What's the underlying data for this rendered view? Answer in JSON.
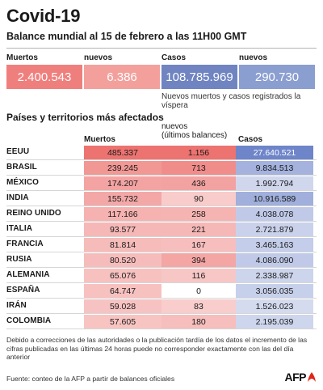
{
  "header": {
    "title": "Covid-19",
    "subtitle": "Balance mundial al 15 de febrero a las 11H00 GMT"
  },
  "summary": {
    "muertos_label": "Muertos",
    "nuevos_label": "nuevos",
    "casos_label": "Casos",
    "nuevos_casos_label": "nuevos",
    "muertos_value": "2.400.543",
    "nuevos_muertos_value": "6.386",
    "casos_value": "108.785.969",
    "nuevos_casos_value": "290.730",
    "note": "Nuevos muertos y casos registrados la víspera"
  },
  "table": {
    "section_title": "Países y territorios más afectados",
    "col_muertos": "Muertos",
    "col_nuevos": "nuevos",
    "col_nuevos_sub": "(últimos balances)",
    "col_casos": "Casos",
    "rows": [
      {
        "country": "EEUU",
        "muertos": "485.337",
        "nuevos": "1.156",
        "casos": "27.640.521"
      },
      {
        "country": "BRASIL",
        "muertos": "239.245",
        "nuevos": "713",
        "casos": "9.834.513"
      },
      {
        "country": "MÉXICO",
        "muertos": "174.207",
        "nuevos": "436",
        "casos": "1.992.794"
      },
      {
        "country": "INDIA",
        "muertos": "155.732",
        "nuevos": "90",
        "casos": "10.916.589"
      },
      {
        "country": "REINO UNIDO",
        "muertos": "117.166",
        "nuevos": "258",
        "casos": "4.038.078"
      },
      {
        "country": "ITALIA",
        "muertos": "93.577",
        "nuevos": "221",
        "casos": "2.721.879"
      },
      {
        "country": "FRANCIA",
        "muertos": "81.814",
        "nuevos": "167",
        "casos": "3.465.163"
      },
      {
        "country": "RUSIA",
        "muertos": "80.520",
        "nuevos": "394",
        "casos": "4.086.090"
      },
      {
        "country": "ALEMANIA",
        "muertos": "65.076",
        "nuevos": "116",
        "casos": "2.338.987"
      },
      {
        "country": "ESPAÑA",
        "muertos": "64.747",
        "nuevos": "0",
        "casos": "3.056.035"
      },
      {
        "country": "IRÁN",
        "muertos": "59.028",
        "nuevos": "83",
        "casos": "1.526.023"
      },
      {
        "country": "COLOMBIA",
        "muertos": "57.605",
        "nuevos": "180",
        "casos": "2.195.039"
      }
    ]
  },
  "footnote": "Debido a correcciones de las autoridades o la publicación tardía de los datos  el incremento de las cifras publicadas en las últimas 24 horas puede no corresponder exactamente con las del día anterior",
  "source": "Fuente: conteo de la AFP a partir de balances oficiales",
  "logo": "AFP",
  "colors": {
    "muertos_box": "#ef7f7d",
    "nuevos_box": "#f3a09c",
    "casos_box": "#6f84c1",
    "nuevos_casos_box": "#8b9ed0",
    "death_ramp_max": "#ec7370",
    "cases_ramp_max": "#6e85c9",
    "logo_red": "#e2231a"
  }
}
